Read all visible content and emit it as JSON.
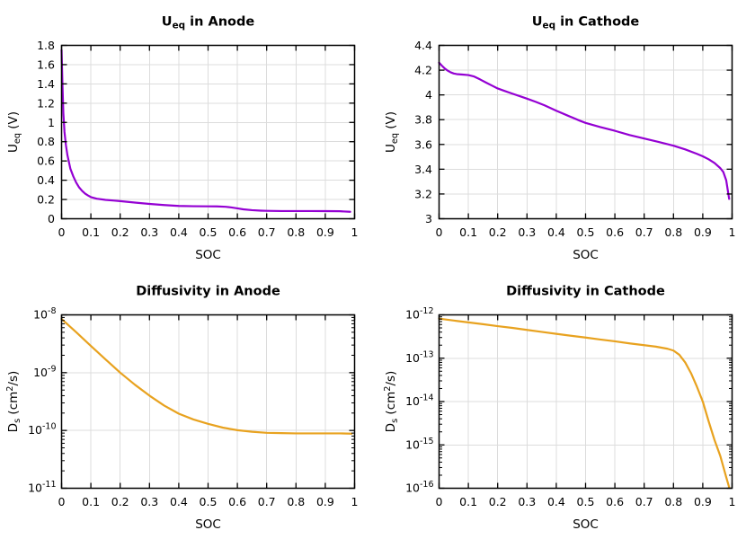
{
  "figure": {
    "background": "#ffffff",
    "grid_color": "#dcdcdc",
    "axis_color": "#000000",
    "text_color": "#000000"
  },
  "chart_data": [
    {
      "type": "line",
      "title_segments": [
        {
          "t": "U",
          "s": "n"
        },
        {
          "t": "eq",
          "s": "sub"
        },
        {
          "t": " in Anode",
          "s": "n"
        }
      ],
      "xlabel": "SOC",
      "ylabel_segments": [
        {
          "t": "U",
          "s": "n"
        },
        {
          "t": "eq",
          "s": "sub"
        },
        {
          "t": " (V)",
          "s": "n"
        }
      ],
      "xlim": [
        0,
        1
      ],
      "ylim": [
        0,
        1.8
      ],
      "yscale": "linear",
      "grid": true,
      "line_color": "#9400d3",
      "xticks": [
        {
          "v": 0,
          "l": "0"
        },
        {
          "v": 0.1,
          "l": "0.1"
        },
        {
          "v": 0.2,
          "l": "0.2"
        },
        {
          "v": 0.3,
          "l": "0.3"
        },
        {
          "v": 0.4,
          "l": "0.4"
        },
        {
          "v": 0.5,
          "l": "0.5"
        },
        {
          "v": 0.6,
          "l": "0.6"
        },
        {
          "v": 0.7,
          "l": "0.7"
        },
        {
          "v": 0.8,
          "l": "0.8"
        },
        {
          "v": 0.9,
          "l": "0.9"
        },
        {
          "v": 1,
          "l": "1"
        }
      ],
      "yticks": [
        {
          "v": 0,
          "l": "0"
        },
        {
          "v": 0.2,
          "l": "0.2"
        },
        {
          "v": 0.4,
          "l": "0.4"
        },
        {
          "v": 0.6,
          "l": "0.6"
        },
        {
          "v": 0.8,
          "l": "0.8"
        },
        {
          "v": 1,
          "l": "1"
        },
        {
          "v": 1.2,
          "l": "1.2"
        },
        {
          "v": 1.4,
          "l": "1.4"
        },
        {
          "v": 1.6,
          "l": "1.6"
        },
        {
          "v": 1.8,
          "l": "1.8"
        }
      ],
      "points": {
        "x": [
          0,
          0.003,
          0.006,
          0.01,
          0.015,
          0.02,
          0.03,
          0.04,
          0.05,
          0.06,
          0.07,
          0.08,
          0.09,
          0.1,
          0.12,
          0.15,
          0.18,
          0.2,
          0.25,
          0.3,
          0.35,
          0.4,
          0.45,
          0.5,
          0.53,
          0.56,
          0.58,
          0.6,
          0.62,
          0.65,
          0.68,
          0.7,
          0.75,
          0.8,
          0.85,
          0.9,
          0.95,
          0.985
        ],
        "y": [
          1.75,
          1.4,
          1.1,
          0.9,
          0.76,
          0.66,
          0.52,
          0.44,
          0.375,
          0.325,
          0.29,
          0.262,
          0.242,
          0.225,
          0.208,
          0.196,
          0.188,
          0.183,
          0.168,
          0.154,
          0.142,
          0.133,
          0.13,
          0.129,
          0.128,
          0.124,
          0.117,
          0.108,
          0.098,
          0.089,
          0.084,
          0.082,
          0.08,
          0.08,
          0.08,
          0.079,
          0.078,
          0.072
        ]
      }
    },
    {
      "type": "line",
      "title_segments": [
        {
          "t": "U",
          "s": "n"
        },
        {
          "t": "eq",
          "s": "sub"
        },
        {
          "t": " in Cathode",
          "s": "n"
        }
      ],
      "xlabel": "SOC",
      "ylabel_segments": [
        {
          "t": "U",
          "s": "n"
        },
        {
          "t": "eq",
          "s": "sub"
        },
        {
          "t": " (V)",
          "s": "n"
        }
      ],
      "xlim": [
        0,
        1
      ],
      "ylim": [
        3,
        4.4
      ],
      "yscale": "linear",
      "grid": true,
      "line_color": "#9400d3",
      "xticks": [
        {
          "v": 0,
          "l": "0"
        },
        {
          "v": 0.1,
          "l": "0.1"
        },
        {
          "v": 0.2,
          "l": "0.2"
        },
        {
          "v": 0.3,
          "l": "0.3"
        },
        {
          "v": 0.4,
          "l": "0.4"
        },
        {
          "v": 0.5,
          "l": "0.5"
        },
        {
          "v": 0.6,
          "l": "0.6"
        },
        {
          "v": 0.7,
          "l": "0.7"
        },
        {
          "v": 0.8,
          "l": "0.8"
        },
        {
          "v": 0.9,
          "l": "0.9"
        },
        {
          "v": 1,
          "l": "1"
        }
      ],
      "yticks": [
        {
          "v": 3,
          "l": "3"
        },
        {
          "v": 3.2,
          "l": "3.2"
        },
        {
          "v": 3.4,
          "l": "3.4"
        },
        {
          "v": 3.6,
          "l": "3.6"
        },
        {
          "v": 3.8,
          "l": "3.8"
        },
        {
          "v": 4,
          "l": "4"
        },
        {
          "v": 4.2,
          "l": "4.2"
        },
        {
          "v": 4.4,
          "l": "4.4"
        }
      ],
      "points": {
        "x": [
          0,
          0.01,
          0.02,
          0.03,
          0.04,
          0.05,
          0.06,
          0.08,
          0.1,
          0.12,
          0.14,
          0.16,
          0.18,
          0.2,
          0.22,
          0.25,
          0.28,
          0.3,
          0.33,
          0.36,
          0.4,
          0.44,
          0.48,
          0.5,
          0.55,
          0.6,
          0.65,
          0.7,
          0.75,
          0.8,
          0.84,
          0.88,
          0.9,
          0.92,
          0.94,
          0.96,
          0.97,
          0.98,
          0.99
        ],
        "y": [
          4.26,
          4.235,
          4.212,
          4.195,
          4.182,
          4.173,
          4.168,
          4.164,
          4.16,
          4.148,
          4.125,
          4.1,
          4.076,
          4.052,
          4.035,
          4.01,
          3.986,
          3.97,
          3.944,
          3.916,
          3.872,
          3.832,
          3.792,
          3.774,
          3.74,
          3.71,
          3.676,
          3.648,
          3.62,
          3.59,
          3.56,
          3.524,
          3.504,
          3.48,
          3.45,
          3.408,
          3.378,
          3.31,
          3.16
        ]
      }
    },
    {
      "type": "line",
      "title_segments": [
        {
          "t": "Diffusivity in Anode",
          "s": "n"
        }
      ],
      "xlabel": "SOC",
      "ylabel_segments": [
        {
          "t": "D",
          "s": "n"
        },
        {
          "t": "s",
          "s": "sub"
        },
        {
          "t": " (cm",
          "s": "n"
        },
        {
          "t": "2",
          "s": "sup"
        },
        {
          "t": "/s)",
          "s": "n"
        }
      ],
      "xlim": [
        0,
        1
      ],
      "ylim": [
        1e-11,
        1e-08
      ],
      "yscale": "log",
      "grid": true,
      "line_color": "#e8a21f",
      "xticks": [
        {
          "v": 0,
          "l": "0"
        },
        {
          "v": 0.1,
          "l": "0.1"
        },
        {
          "v": 0.2,
          "l": "0.2"
        },
        {
          "v": 0.3,
          "l": "0.3"
        },
        {
          "v": 0.4,
          "l": "0.4"
        },
        {
          "v": 0.5,
          "l": "0.5"
        },
        {
          "v": 0.6,
          "l": "0.6"
        },
        {
          "v": 0.7,
          "l": "0.7"
        },
        {
          "v": 0.8,
          "l": "0.8"
        },
        {
          "v": 0.9,
          "l": "0.9"
        },
        {
          "v": 1,
          "l": "1"
        }
      ],
      "yticks": [
        {
          "v": 1e-08,
          "l": "10",
          "sup": "-8"
        },
        {
          "v": 1e-09,
          "l": "10",
          "sup": "-9"
        },
        {
          "v": 1e-10,
          "l": "10",
          "sup": "-10"
        },
        {
          "v": 1e-11,
          "l": "10",
          "sup": "-11"
        }
      ],
      "points": {
        "x": [
          0,
          0.05,
          0.1,
          0.15,
          0.2,
          0.25,
          0.3,
          0.35,
          0.4,
          0.45,
          0.5,
          0.55,
          0.6,
          0.65,
          0.7,
          0.75,
          0.8,
          0.85,
          0.9,
          0.95,
          0.99
        ],
        "y": [
          8.5e-09,
          5e-09,
          2.9e-09,
          1.7e-09,
          1e-09,
          6.2e-10,
          4e-10,
          2.7e-10,
          1.95e-10,
          1.55e-10,
          1.3e-10,
          1.12e-10,
          1.01e-10,
          9.5e-11,
          9.1e-11,
          9e-11,
          8.9e-11,
          8.9e-11,
          8.9e-11,
          8.9e-11,
          8.8e-11
        ]
      }
    },
    {
      "type": "line",
      "title_segments": [
        {
          "t": "Diffusivity in Cathode",
          "s": "n"
        }
      ],
      "xlabel": "SOC",
      "ylabel_segments": [
        {
          "t": "D",
          "s": "n"
        },
        {
          "t": "s",
          "s": "sub"
        },
        {
          "t": " (cm",
          "s": "n"
        },
        {
          "t": "2",
          "s": "sup"
        },
        {
          "t": "/s)",
          "s": "n"
        }
      ],
      "xlim": [
        0,
        1
      ],
      "ylim": [
        1e-16,
        1e-12
      ],
      "yscale": "log",
      "grid": true,
      "line_color": "#e8a21f",
      "xticks": [
        {
          "v": 0,
          "l": "0"
        },
        {
          "v": 0.1,
          "l": "0.1"
        },
        {
          "v": 0.2,
          "l": "0.2"
        },
        {
          "v": 0.3,
          "l": "0.3"
        },
        {
          "v": 0.4,
          "l": "0.4"
        },
        {
          "v": 0.5,
          "l": "0.5"
        },
        {
          "v": 0.6,
          "l": "0.6"
        },
        {
          "v": 0.7,
          "l": "0.7"
        },
        {
          "v": 0.8,
          "l": "0.8"
        },
        {
          "v": 0.9,
          "l": "0.9"
        },
        {
          "v": 1,
          "l": "1"
        }
      ],
      "yticks": [
        {
          "v": 1e-12,
          "l": "10",
          "sup": "-12"
        },
        {
          "v": 1e-13,
          "l": "10",
          "sup": "-13"
        },
        {
          "v": 1e-14,
          "l": "10",
          "sup": "-14"
        },
        {
          "v": 1e-15,
          "l": "10",
          "sup": "-15"
        },
        {
          "v": 1e-16,
          "l": "10",
          "sup": "-16"
        }
      ],
      "points": {
        "x": [
          0,
          0.05,
          0.1,
          0.15,
          0.2,
          0.25,
          0.3,
          0.35,
          0.4,
          0.45,
          0.5,
          0.55,
          0.6,
          0.65,
          0.7,
          0.74,
          0.78,
          0.8,
          0.82,
          0.84,
          0.86,
          0.88,
          0.9,
          0.92,
          0.94,
          0.96,
          0.98,
          0.99
        ],
        "y": [
          8.2e-13,
          7.4e-13,
          6.7e-13,
          6.1e-13,
          5.5e-13,
          5e-13,
          4.5e-13,
          4.05e-13,
          3.65e-13,
          3.3e-13,
          3e-13,
          2.7e-13,
          2.45e-13,
          2.2e-13,
          2e-13,
          1.85e-13,
          1.65e-13,
          1.5e-13,
          1.2e-13,
          8e-14,
          4.5e-14,
          2.2e-14,
          1e-14,
          3.5e-15,
          1.3e-15,
          5.5e-16,
          1.8e-16,
          1.05e-16
        ]
      }
    }
  ]
}
